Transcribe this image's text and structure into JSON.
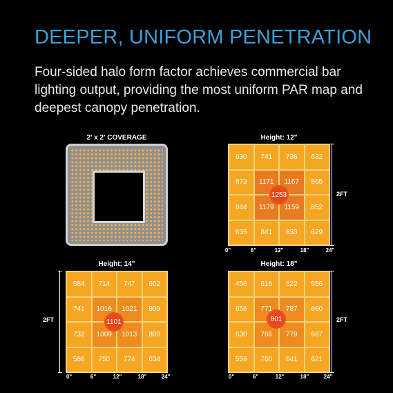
{
  "headline": "DEEPER, UNIFORM PENETRATION",
  "subhead": "Four-sided halo form factor achieves commercial bar lighting output, providing the most uniform PAR map and deepest canopy penetration.",
  "coverage_label": "2' x 2' COVERAGE",
  "colors": {
    "headline": "#3e9fd8",
    "cell": "#f5a623",
    "peak": "#e5501d"
  },
  "axis_ticks": [
    "0\"",
    "6\"",
    "12\"",
    "18\"",
    "24\""
  ],
  "side_label": "2FT",
  "maps": [
    {
      "title": "Height: 12\"",
      "peak": "1253",
      "rows": [
        [
          "630",
          "741",
          "736",
          "632"
        ],
        [
          "873",
          "1171",
          "1167",
          "865"
        ],
        [
          "844",
          "1179",
          "1159",
          "852"
        ],
        [
          "635",
          "841",
          "833",
          "629"
        ]
      ]
    },
    {
      "title": "Height: 14\"",
      "peak": "1101",
      "rows": [
        [
          "584",
          "714",
          "747",
          "602"
        ],
        [
          "741",
          "1016",
          "1021",
          "809"
        ],
        [
          "732",
          "1009",
          "1013",
          "800"
        ],
        [
          "586",
          "750",
          "774",
          "634"
        ]
      ]
    },
    {
      "title": "Height: 18\"",
      "peak": "801",
      "rows": [
        [
          "456",
          "616",
          "622",
          "556"
        ],
        [
          "656",
          "771",
          "787",
          "660"
        ],
        [
          "630",
          "766",
          "779",
          "667"
        ],
        [
          "559",
          "760",
          "641",
          "621"
        ]
      ]
    }
  ]
}
